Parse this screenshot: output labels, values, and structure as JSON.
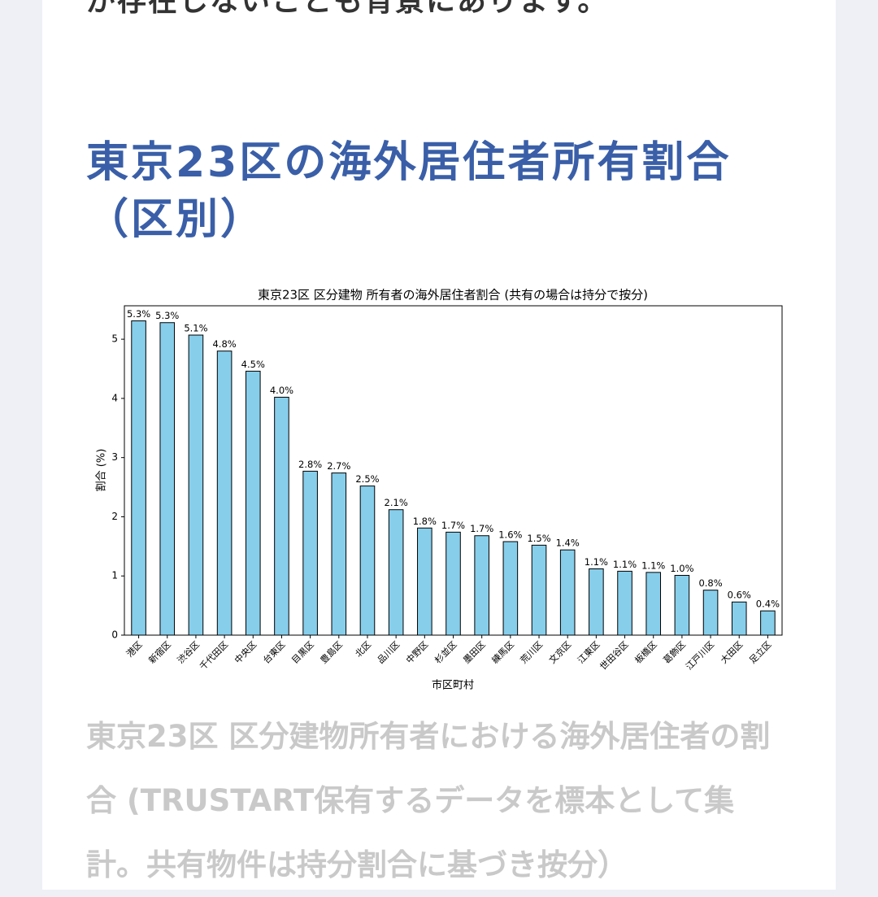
{
  "article": {
    "text_fragment": "が存在しないことも背景にあります。",
    "heading": "東京23区の海外居住者所有割合（区別）",
    "caption": "東京23区 区分建物所有者における海外居住者の割合 (TRUSTART保有するデータを標本として集計。共有物件は持分割合に基づき按分）"
  },
  "chart_data": {
    "type": "bar",
    "title": "東京23区 区分建物 所有者の海外居住者割合 (共有の場合は持分で按分)",
    "x_label": "市区町村",
    "y_label": "割合 (%)",
    "categories": [
      "港区",
      "新宿区",
      "渋谷区",
      "千代田区",
      "中央区",
      "台東区",
      "目黒区",
      "豊島区",
      "北区",
      "品川区",
      "中野区",
      "杉並区",
      "墨田区",
      "練馬区",
      "荒川区",
      "文京区",
      "江東区",
      "世田谷区",
      "板橋区",
      "葛飾区",
      "江戸川区",
      "大田区",
      "足立区"
    ],
    "values": [
      5.31,
      5.28,
      5.07,
      4.8,
      4.46,
      4.02,
      2.77,
      2.74,
      2.52,
      2.12,
      1.81,
      1.74,
      1.68,
      1.58,
      1.52,
      1.44,
      1.12,
      1.08,
      1.06,
      1.01,
      0.76,
      0.56,
      0.41
    ],
    "value_labels": [
      "5.3%",
      "5.3%",
      "5.1%",
      "4.8%",
      "4.5%",
      "4.0%",
      "2.8%",
      "2.7%",
      "2.5%",
      "2.1%",
      "1.8%",
      "1.7%",
      "1.7%",
      "1.6%",
      "1.5%",
      "1.4%",
      "1.1%",
      "1.1%",
      "1.1%",
      "1.0%",
      "0.8%",
      "0.6%",
      "0.4%"
    ],
    "color": "#87ceeb",
    "edge_color": "#000000",
    "ylim": [
      0,
      5.565
    ],
    "yticks": [
      0,
      1,
      2,
      3,
      4,
      5
    ],
    "grid": false
  }
}
